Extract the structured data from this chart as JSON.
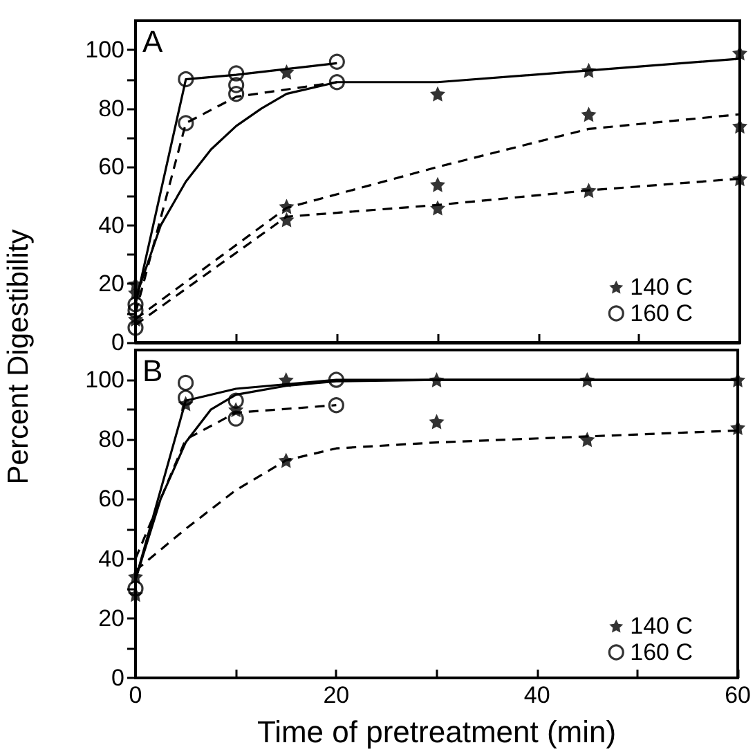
{
  "chart_data": [
    {
      "type": "scatter",
      "annotations": [
        "A"
      ],
      "ylabel": "Percent Digestibility",
      "xlim": [
        0,
        60
      ],
      "xticks": [
        0,
        {
          "value": 10,
          "label": null
        },
        20,
        {
          "value": 30,
          "label": null
        },
        40,
        {
          "value": 50,
          "label": null
        },
        60
      ],
      "ylim": [
        0,
        110
      ],
      "yticks": [
        0,
        {
          "value": 10,
          "label": null
        },
        20,
        {
          "value": 30,
          "label": null
        },
        40,
        {
          "value": 50,
          "label": null
        },
        60,
        {
          "value": 70,
          "label": null
        },
        80,
        {
          "value": 90,
          "label": null
        },
        100
      ],
      "tick_labels": "y",
      "legend": "bottom right",
      "series": [
        {
          "name": "140 C",
          "color": "#000000",
          "marker": "star",
          "x": [
            0,
            0,
            0,
            15,
            15,
            15,
            30,
            30,
            30,
            45,
            45,
            45,
            60,
            60,
            60
          ],
          "values": [
            20,
            17,
            8,
            92.5,
            46.5,
            42,
            85,
            54,
            46,
            93,
            78,
            52,
            99,
            74,
            56
          ]
        },
        {
          "name": "160 C",
          "color": "#000000",
          "marker": "circle",
          "x": [
            0,
            0,
            0,
            5,
            5,
            10,
            10,
            10,
            20,
            20
          ],
          "values": [
            13,
            11,
            5,
            90,
            75,
            92,
            88,
            85,
            96,
            89
          ]
        },
        {
          "type": "line",
          "color": "#000000",
          "marker": "none",
          "line_style": "solid",
          "x": [
            0,
            5,
            10,
            20
          ],
          "values": [
            13,
            90,
            91.5,
            95.5
          ]
        },
        {
          "type": "line",
          "color": "#000000",
          "marker": "none",
          "line_style": "dashed",
          "x": [
            0,
            5,
            10,
            20
          ],
          "values": [
            10,
            75,
            84,
            89
          ]
        },
        {
          "type": "line",
          "color": "#000000",
          "marker": "none",
          "line_style": "solid",
          "x": [
            0,
            2.5,
            5,
            7.5,
            10,
            12.5,
            15,
            20,
            30,
            45,
            60
          ],
          "values": [
            15,
            40,
            55,
            66,
            74,
            80,
            85,
            89,
            89,
            93,
            97
          ]
        },
        {
          "type": "line",
          "color": "#000000",
          "marker": "none",
          "line_style": "dashed",
          "x": [
            0,
            15,
            30,
            45,
            60
          ],
          "values": [
            8,
            46,
            60,
            73,
            78
          ]
        },
        {
          "type": "line",
          "color": "#000000",
          "marker": "none",
          "line_style": "dashed",
          "x": [
            0,
            15,
            30,
            45,
            60
          ],
          "values": [
            6,
            43,
            47,
            52,
            56
          ]
        }
      ]
    },
    {
      "type": "scatter",
      "annotations": [
        "B"
      ],
      "xlabel": "Time of pretreatment (min)",
      "xlim": [
        0,
        60
      ],
      "xticks": [
        0,
        {
          "value": 10,
          "label": null
        },
        20,
        {
          "value": 30,
          "label": null
        },
        40,
        {
          "value": 50,
          "label": null
        },
        60
      ],
      "ylim": [
        0,
        110
      ],
      "yticks": [
        0,
        {
          "value": 10,
          "label": null
        },
        20,
        {
          "value": 30,
          "label": null
        },
        40,
        {
          "value": 50,
          "label": null
        },
        60,
        {
          "value": 70,
          "label": null
        },
        80,
        {
          "value": 90,
          "label": null
        },
        100
      ],
      "legend": "bottom right",
      "series": [
        {
          "name": "140 C",
          "color": "#000000",
          "marker": "star",
          "x": [
            0,
            0,
            5,
            10,
            15,
            15,
            30,
            30,
            45,
            45,
            60,
            60
          ],
          "values": [
            34,
            28,
            92,
            90,
            100,
            73,
            100,
            86,
            100,
            80,
            100,
            84
          ]
        },
        {
          "name": "160 C",
          "color": "#000000",
          "marker": "circle",
          "x": [
            0,
            5,
            5,
            10,
            10,
            20,
            20
          ],
          "values": [
            30,
            99,
            94,
            93,
            87,
            100,
            91.5
          ]
        },
        {
          "type": "line",
          "color": "#000000",
          "marker": "none",
          "line_style": "solid",
          "x": [
            0,
            5,
            10,
            20,
            60
          ],
          "values": [
            33,
            93,
            97,
            100,
            100
          ]
        },
        {
          "type": "line",
          "color": "#000000",
          "marker": "none",
          "line_style": "solid",
          "x": [
            0,
            2.5,
            5,
            7.5,
            10,
            15,
            20,
            30,
            60
          ],
          "values": [
            33,
            60,
            79,
            90,
            95,
            98,
            99.5,
            100,
            100
          ]
        },
        {
          "type": "line",
          "color": "#000000",
          "marker": "none",
          "line_style": "dashed",
          "x": [
            0,
            5,
            10,
            20
          ],
          "values": [
            40,
            80,
            89,
            91.5
          ]
        },
        {
          "type": "line",
          "color": "#000000",
          "marker": "none",
          "line_style": "dashed",
          "x": [
            0,
            5,
            10,
            15,
            20,
            30,
            45,
            60
          ],
          "values": [
            36,
            50,
            63,
            73,
            77,
            79,
            81,
            83
          ]
        }
      ]
    }
  ]
}
